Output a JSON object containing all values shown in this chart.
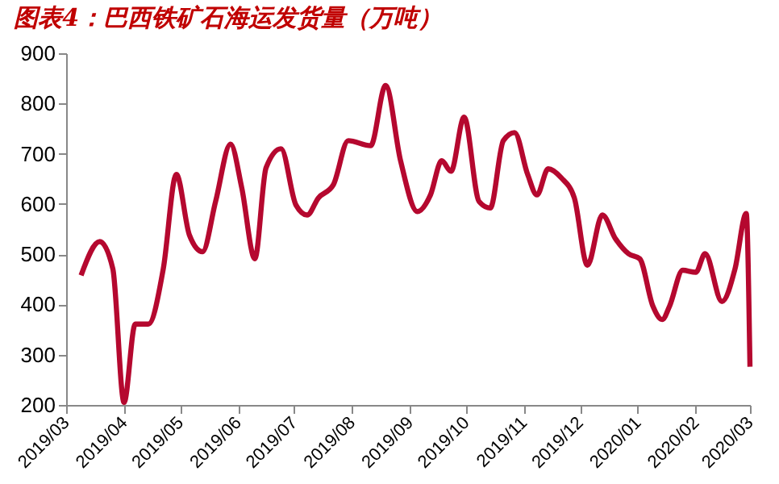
{
  "chart_data": {
    "type": "line",
    "title": "图表4：巴西铁矿石海运发货量（万吨）",
    "x": [
      "2019-03-09",
      "2019-03-19",
      "2019-03-26",
      "2019-04-01",
      "2019-04-07",
      "2019-04-14",
      "2019-04-22",
      "2019-04-29",
      "2019-05-06",
      "2019-05-13",
      "2019-05-20",
      "2019-05-28",
      "2019-06-03",
      "2019-06-10",
      "2019-06-16",
      "2019-06-24",
      "2019-07-02",
      "2019-07-08",
      "2019-07-14",
      "2019-07-22",
      "2019-07-30",
      "2019-08-11",
      "2019-08-19",
      "2019-08-27",
      "2019-09-05",
      "2019-09-12",
      "2019-09-18",
      "2019-09-23",
      "2019-09-30",
      "2019-10-08",
      "2019-10-14",
      "2019-10-21",
      "2019-10-27",
      "2019-11-03",
      "2019-11-08",
      "2019-11-14",
      "2019-11-21",
      "2019-11-28",
      "2019-12-05",
      "2019-12-13",
      "2019-12-20",
      "2019-12-27",
      "2020-01-02",
      "2020-01-09",
      "2020-01-14",
      "2020-01-18",
      "2020-01-25",
      "2020-02-01",
      "2020-02-06",
      "2020-02-15",
      "2020-02-22",
      "2020-02-28",
      "2020-03-01"
    ],
    "series": [
      {
        "color": "#b5082f",
        "values": [
          458,
          525,
          471,
          205,
          361,
          361,
          471,
          659,
          538,
          505,
          605,
          719,
          632,
          491,
          672,
          710,
          598,
          578,
          612,
          638,
          726,
          716,
          836,
          686,
          585,
          618,
          686,
          665,
          773,
          605,
          592,
          726,
          742,
          659,
          618,
          670,
          652,
          612,
          478,
          578,
          531,
          501,
          491,
          397,
          370,
          397,
          468,
          464,
          501,
          406,
          471,
          581,
          276
        ]
      }
    ],
    "xlim": [
      "2019-03-01",
      "2020-03-01"
    ],
    "xticks": [
      {
        "value": "2019-03-01",
        "label": "2019/03"
      },
      {
        "value": "2019-04-01",
        "label": "2019/04"
      },
      {
        "value": "2019-05-01",
        "label": "2019/05"
      },
      {
        "value": "2019-06-01",
        "label": "2019/06"
      },
      {
        "value": "2019-07-01",
        "label": "2019/07"
      },
      {
        "value": "2019-08-01",
        "label": "2019/08"
      },
      {
        "value": "2019-09-01",
        "label": "2019/09"
      },
      {
        "value": "2019-10-01",
        "label": "2019/10"
      },
      {
        "value": "2019-11-01",
        "label": "2019/11"
      },
      {
        "value": "2019-12-01",
        "label": "2019/12"
      },
      {
        "value": "2020-01-01",
        "label": "2020/01"
      },
      {
        "value": "2020-02-01",
        "label": "2020/02"
      },
      {
        "value": "2020-03-01",
        "label": "2020/03"
      }
    ],
    "ylim": [
      200,
      900
    ],
    "yticks": [
      200,
      300,
      400,
      500,
      600,
      700,
      800,
      900
    ],
    "grid": false,
    "legend": false,
    "marker": "none",
    "line_style": "solid"
  }
}
